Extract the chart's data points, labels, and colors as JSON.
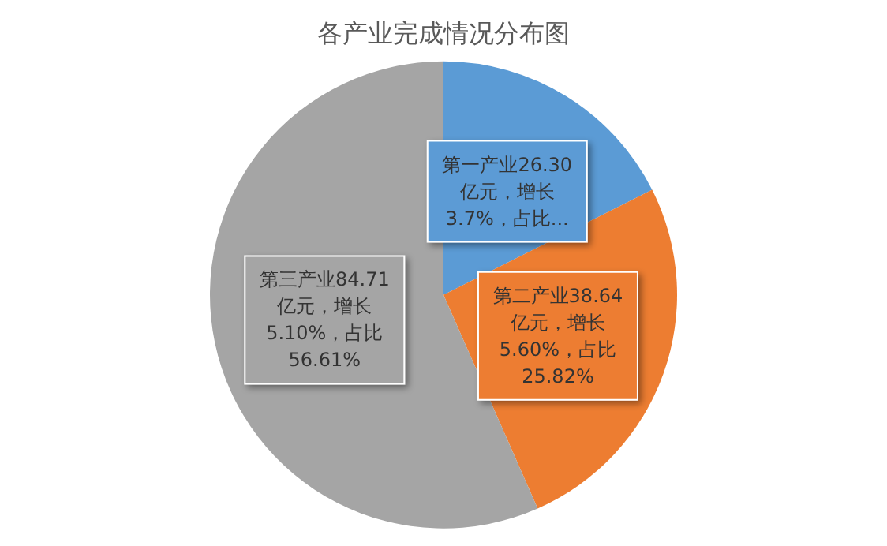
{
  "chart_data": {
    "type": "pie",
    "title": "各产业完成情况分布图",
    "categories": [
      null,
      null,
      null
    ],
    "values": [
      26.3,
      38.64,
      84.71
    ],
    "colors": [
      "#5b9bd5",
      "#ed7d31",
      "#a5a5a5"
    ],
    "value_labels": [
      "第一产业26.30亿元，增长3.7%，占比...",
      "第二产业38.64亿元，增长5.60%，占比25.82%",
      "第三产业84.71亿元，增长5.10%，占比56.61%"
    ]
  }
}
